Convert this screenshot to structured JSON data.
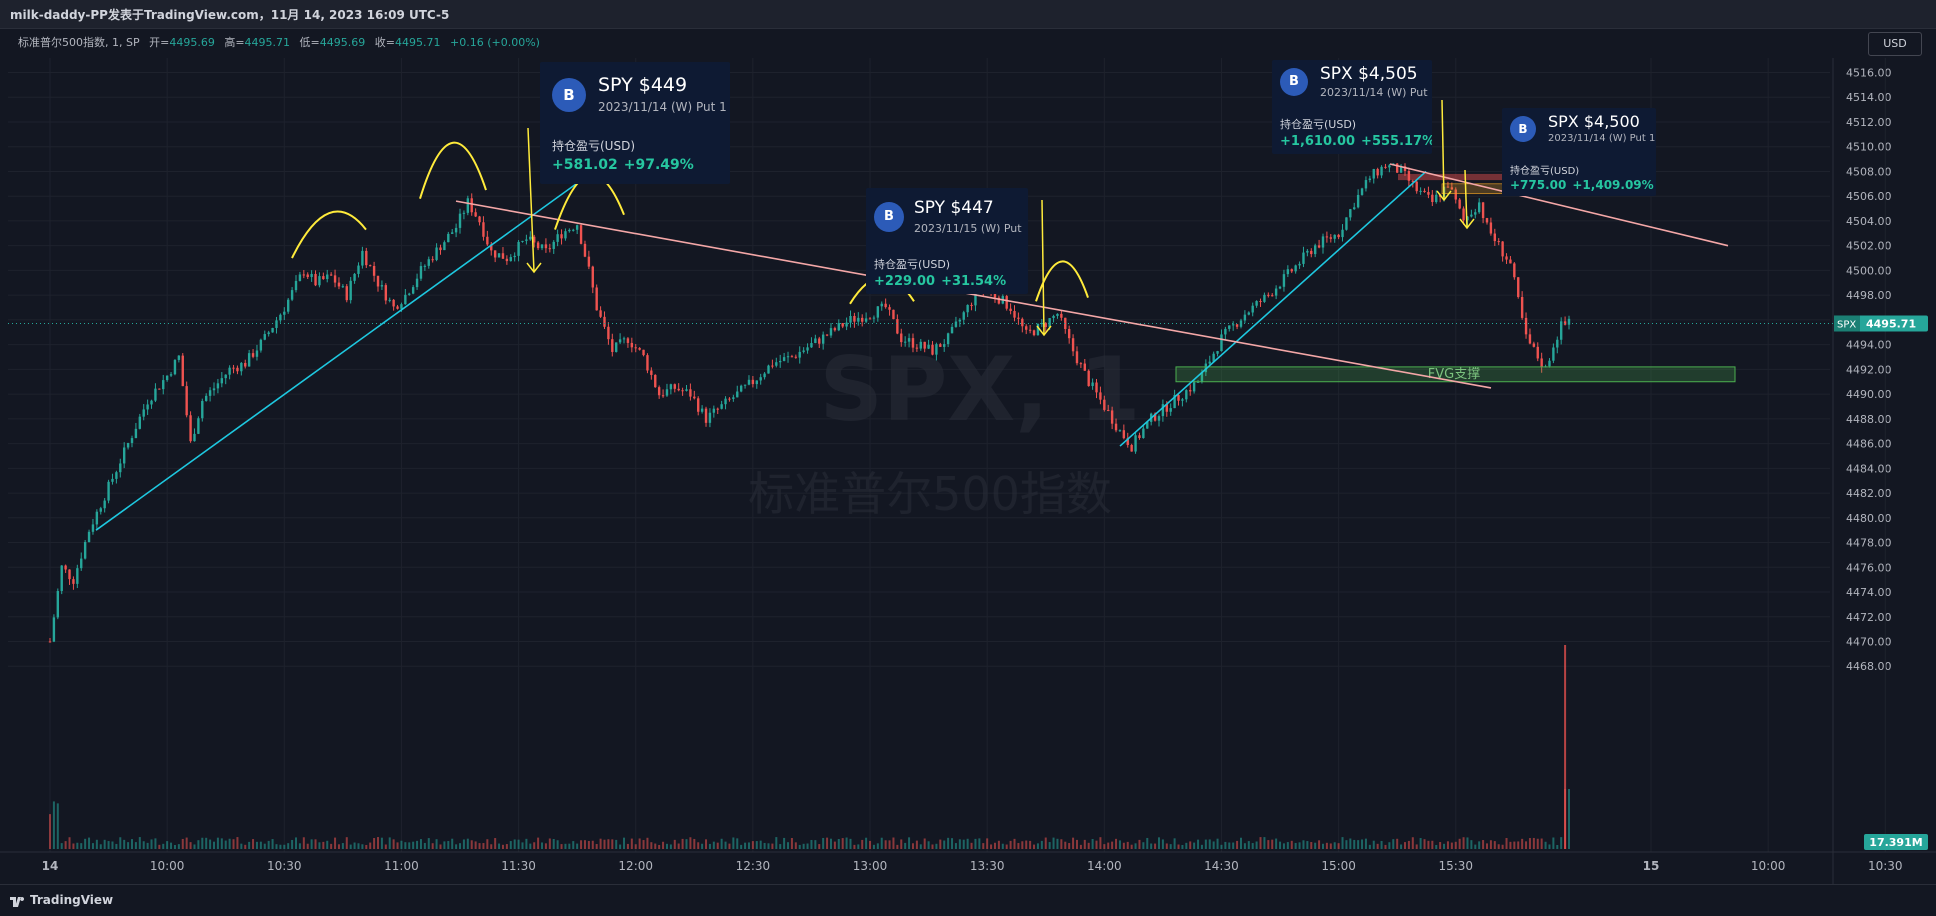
{
  "header": {
    "title": "milk-daddy-PP发表于TradingView.com，11月 14, 2023 16:09 UTC-5"
  },
  "legend": {
    "symbol": "标准普尔500指数, 1, SP",
    "open_label": "开=",
    "open": "4495.69",
    "high_label": "高=",
    "high": "4495.71",
    "low_label": "低=",
    "low": "4495.69",
    "close_label": "收=",
    "close": "4495.71",
    "change": "+0.16 (+0.00%)"
  },
  "currency": "USD",
  "watermark": {
    "symbol": "SPX, 1",
    "name": "标准普尔500指数"
  },
  "price_badge": {
    "symbol": "SPX",
    "value": "4495.71"
  },
  "volume_badge": "17.391M",
  "annotation": {
    "fvg_label": "FVG支撑"
  },
  "cards": [
    {
      "title": "SPY $449",
      "subtitle": "2023/11/14 (W) Put 1",
      "pnl_label": "持仓盈亏(USD)",
      "pnl_amount": "+581.02",
      "pnl_pct": "+97.49%",
      "badge": "B"
    },
    {
      "title": "SPY $447",
      "subtitle": "2023/11/15 (W) Put",
      "pnl_label": "持仓盈亏(USD)",
      "pnl_amount": "+229.00",
      "pnl_pct": "+31.54%",
      "badge": "B"
    },
    {
      "title": "SPX $4,505",
      "subtitle": "2023/11/14 (W) Put 1",
      "pnl_label": "持仓盈亏(USD)",
      "pnl_amount": "+1,610.00",
      "pnl_pct": "+555.17%",
      "badge": "B"
    },
    {
      "title": "SPX $4,500",
      "subtitle": "2023/11/14 (W) Put 1",
      "pnl_label": "持仓盈亏(USD)",
      "pnl_amount": "+775.00",
      "pnl_pct": "+1,409.09%",
      "badge": "B"
    }
  ],
  "footer": {
    "brand": "TradingView"
  },
  "colors": {
    "background": "#131722",
    "up": "#26a69a",
    "down": "#ef5350",
    "trendline_cyan": "#1ec8e0",
    "trendline_pink": "#f4a7a7",
    "annotation_yellow": "#ffeb3b",
    "fvg_zone": "#4caf50"
  },
  "chart_data": {
    "type": "candlestick",
    "symbol": "SPX",
    "interval": "1",
    "ylim": [
      4466,
      4517
    ],
    "y_ticks": [
      "4516.00",
      "4514.00",
      "4512.00",
      "4510.00",
      "4508.00",
      "4506.00",
      "4504.00",
      "4502.00",
      "4500.00",
      "4498.00",
      "4496.00",
      "4494.00",
      "4492.00",
      "4490.00",
      "4488.00",
      "4486.00",
      "4484.00",
      "4482.00",
      "4480.00",
      "4478.00",
      "4476.00",
      "4474.00",
      "4472.00",
      "4470.00",
      "4468.00"
    ],
    "x_ticks": [
      "14",
      "10:00",
      "10:30",
      "11:00",
      "11:30",
      "12:00",
      "12:30",
      "13:00",
      "13:30",
      "14:00",
      "14:30",
      "15:00",
      "15:30",
      "15",
      "10:00",
      "10:30"
    ],
    "session_path": [
      [
        "09:30",
        4470.0
      ],
      [
        "09:33",
        4476.0
      ],
      [
        "09:36",
        4475.0
      ],
      [
        "09:40",
        4479.0
      ],
      [
        "09:45",
        4482.5
      ],
      [
        "09:50",
        4486.0
      ],
      [
        "09:55",
        4489.5
      ],
      [
        "10:00",
        4491.5
      ],
      [
        "10:03",
        4493.0
      ],
      [
        "10:06",
        4486.0
      ],
      [
        "10:09",
        4489.5
      ],
      [
        "10:12",
        4490.5
      ],
      [
        "10:16",
        4492.0
      ],
      [
        "10:20",
        4492.5
      ],
      [
        "10:25",
        4494.5
      ],
      [
        "10:30",
        4497.0
      ],
      [
        "10:35",
        4500.0
      ],
      [
        "10:38",
        4499.0
      ],
      [
        "10:42",
        4499.5
      ],
      [
        "10:46",
        4498.0
      ],
      [
        "10:50",
        4501.5
      ],
      [
        "10:54",
        4499.0
      ],
      [
        "10:58",
        4497.0
      ],
      [
        "11:01",
        4498.0
      ],
      [
        "11:05",
        4500.0
      ],
      [
        "11:10",
        4502.0
      ],
      [
        "11:14",
        4503.5
      ],
      [
        "11:17",
        4505.5
      ],
      [
        "11:20",
        4504.0
      ],
      [
        "11:23",
        4501.5
      ],
      [
        "11:27",
        4501.0
      ],
      [
        "11:32",
        4502.5
      ],
      [
        "11:37",
        4501.5
      ],
      [
        "11:41",
        4503.0
      ],
      [
        "11:45",
        4503.8
      ],
      [
        "11:48",
        4500.0
      ],
      [
        "11:50",
        4497.0
      ],
      [
        "11:54",
        4493.5
      ],
      [
        "11:58",
        4494.5
      ],
      [
        "12:02",
        4493.0
      ],
      [
        "12:06",
        4490.0
      ],
      [
        "12:10",
        4490.5
      ],
      [
        "12:14",
        4490.0
      ],
      [
        "12:18",
        4488.0
      ],
      [
        "12:22",
        4489.0
      ],
      [
        "12:26",
        4490.0
      ],
      [
        "12:30",
        4491.0
      ],
      [
        "12:35",
        4492.5
      ],
      [
        "12:40",
        4493.0
      ],
      [
        "12:45",
        4494.0
      ],
      [
        "12:50",
        4495.0
      ],
      [
        "12:55",
        4496.0
      ],
      [
        "13:00",
        4496.5
      ],
      [
        "13:04",
        4497.0
      ],
      [
        "13:08",
        4494.5
      ],
      [
        "13:12",
        4494.0
      ],
      [
        "13:16",
        4493.5
      ],
      [
        "13:20",
        4494.5
      ],
      [
        "13:24",
        4496.5
      ],
      [
        "13:28",
        4498.5
      ],
      [
        "13:32",
        4498.0
      ],
      [
        "13:36",
        4497.0
      ],
      [
        "13:40",
        4494.8
      ],
      [
        "13:44",
        4495.5
      ],
      [
        "13:48",
        4496.5
      ],
      [
        "13:52",
        4493.5
      ],
      [
        "13:56",
        4491.0
      ],
      [
        "14:00",
        4489.0
      ],
      [
        "14:04",
        4487.0
      ],
      [
        "14:07",
        4485.8
      ],
      [
        "14:12",
        4488.0
      ],
      [
        "14:18",
        4489.5
      ],
      [
        "14:24",
        4491.0
      ],
      [
        "14:30",
        4494.5
      ],
      [
        "14:36",
        4496.5
      ],
      [
        "14:42",
        4498.0
      ],
      [
        "14:48",
        4500.0
      ],
      [
        "14:54",
        4502.0
      ],
      [
        "15:00",
        4503.0
      ],
      [
        "15:04",
        4505.5
      ],
      [
        "15:08",
        4507.5
      ],
      [
        "15:12",
        4508.5
      ],
      [
        "15:16",
        4508.0
      ],
      [
        "15:20",
        4506.5
      ],
      [
        "15:24",
        4505.5
      ],
      [
        "15:28",
        4507.0
      ],
      [
        "15:32",
        4504.0
      ],
      [
        "15:36",
        4505.5
      ],
      [
        "15:38",
        4503.5
      ],
      [
        "15:42",
        4501.5
      ],
      [
        "15:44",
        4500.5
      ],
      [
        "15:46",
        4497.5
      ],
      [
        "15:48",
        4494.5
      ],
      [
        "15:51",
        4493.0
      ],
      [
        "15:53",
        4492.0
      ],
      [
        "15:55",
        4494.0
      ],
      [
        "15:57",
        4495.5
      ],
      [
        "15:59",
        4495.71
      ]
    ],
    "last_price": 4495.71,
    "volume_last": "17.391M",
    "grid": true,
    "legend_position": "top-left"
  }
}
